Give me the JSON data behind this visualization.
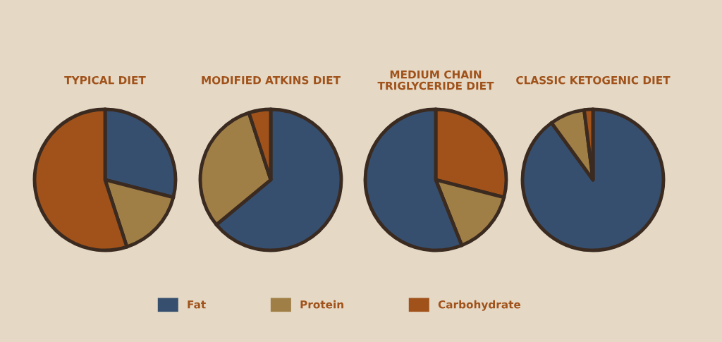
{
  "chart_data": [
    {
      "type": "pie",
      "title": "TYPICAL DIET",
      "categories": [
        "Fat",
        "Protein",
        "Carbohydrate"
      ],
      "values": [
        29,
        16,
        55
      ],
      "colors": [
        "#364f6e",
        "#a07f47",
        "#a0521a"
      ],
      "legend": "bottom"
    },
    {
      "type": "pie",
      "title": "MODIFIED ATKINS DIET",
      "categories": [
        null,
        null,
        null
      ],
      "values": [
        64,
        31,
        5
      ],
      "colors": [
        "#364f6e",
        "#a07f47",
        "#a0521a"
      ]
    },
    {
      "type": "pie",
      "title": "MEDIUM CHAIN\nTRIGLYCERIDE DIET",
      "categories": [
        null,
        null,
        null
      ],
      "values": [
        29,
        15,
        56
      ],
      "colors": [
        "#a0521a",
        "#a07f47",
        "#364f6e"
      ]
    },
    {
      "type": "pie",
      "title": "CLASSIC KETOGENIC DIET",
      "categories": [
        null,
        null,
        null
      ],
      "values": [
        90,
        8,
        2
      ],
      "colors": [
        "#364f6e",
        "#a07f47",
        "#a0521a"
      ]
    }
  ]
}
